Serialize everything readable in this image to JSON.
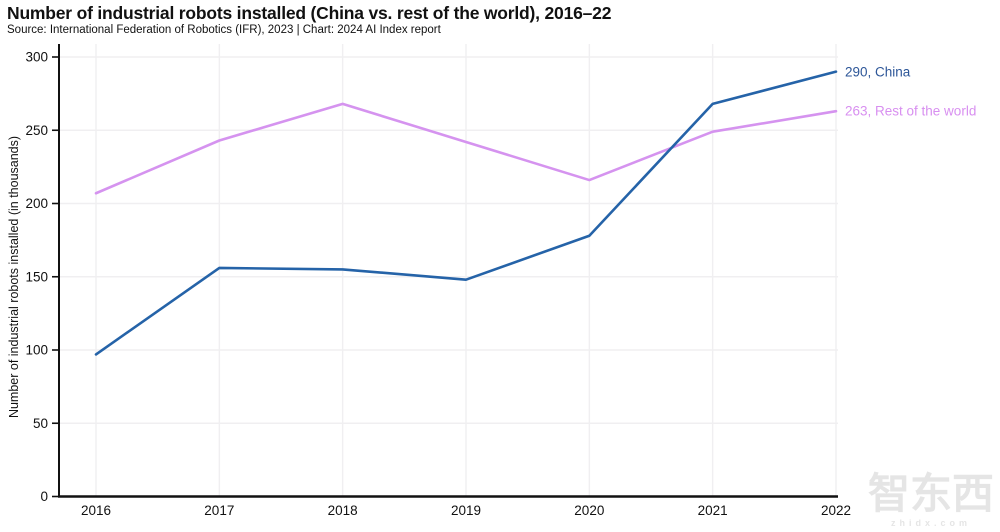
{
  "title": "Number of industrial robots installed (China vs. rest of the world), 2016–22",
  "subtitle": "Source: International Federation of Robotics (IFR), 2023 | Chart: 2024 AI Index report",
  "watermark": {
    "logo": "智东西",
    "caption": "zhidx.com"
  },
  "chart_data": {
    "type": "line",
    "x": [
      2016,
      2017,
      2018,
      2019,
      2020,
      2021,
      2022
    ],
    "series": [
      {
        "name": "China",
        "values": [
          97,
          156,
          155,
          148,
          178,
          268,
          290
        ],
        "color": "#2563a8",
        "end_label": "290, China",
        "end_label_color": "#2d5698"
      },
      {
        "name": "Rest of the world",
        "values": [
          207,
          243,
          268,
          242,
          216,
          249,
          263
        ],
        "color": "#d593ef",
        "end_label": "263, Rest of the world",
        "end_label_color": "#d88ff0"
      }
    ],
    "ylabel": "Number of industrial robots installed (in thousands)",
    "ylim": [
      0,
      300
    ],
    "ytick_step": 50,
    "grid": true,
    "axis_color": "#111111",
    "grid_color": "#f0eff1",
    "legend_position": "end-labels-right"
  }
}
